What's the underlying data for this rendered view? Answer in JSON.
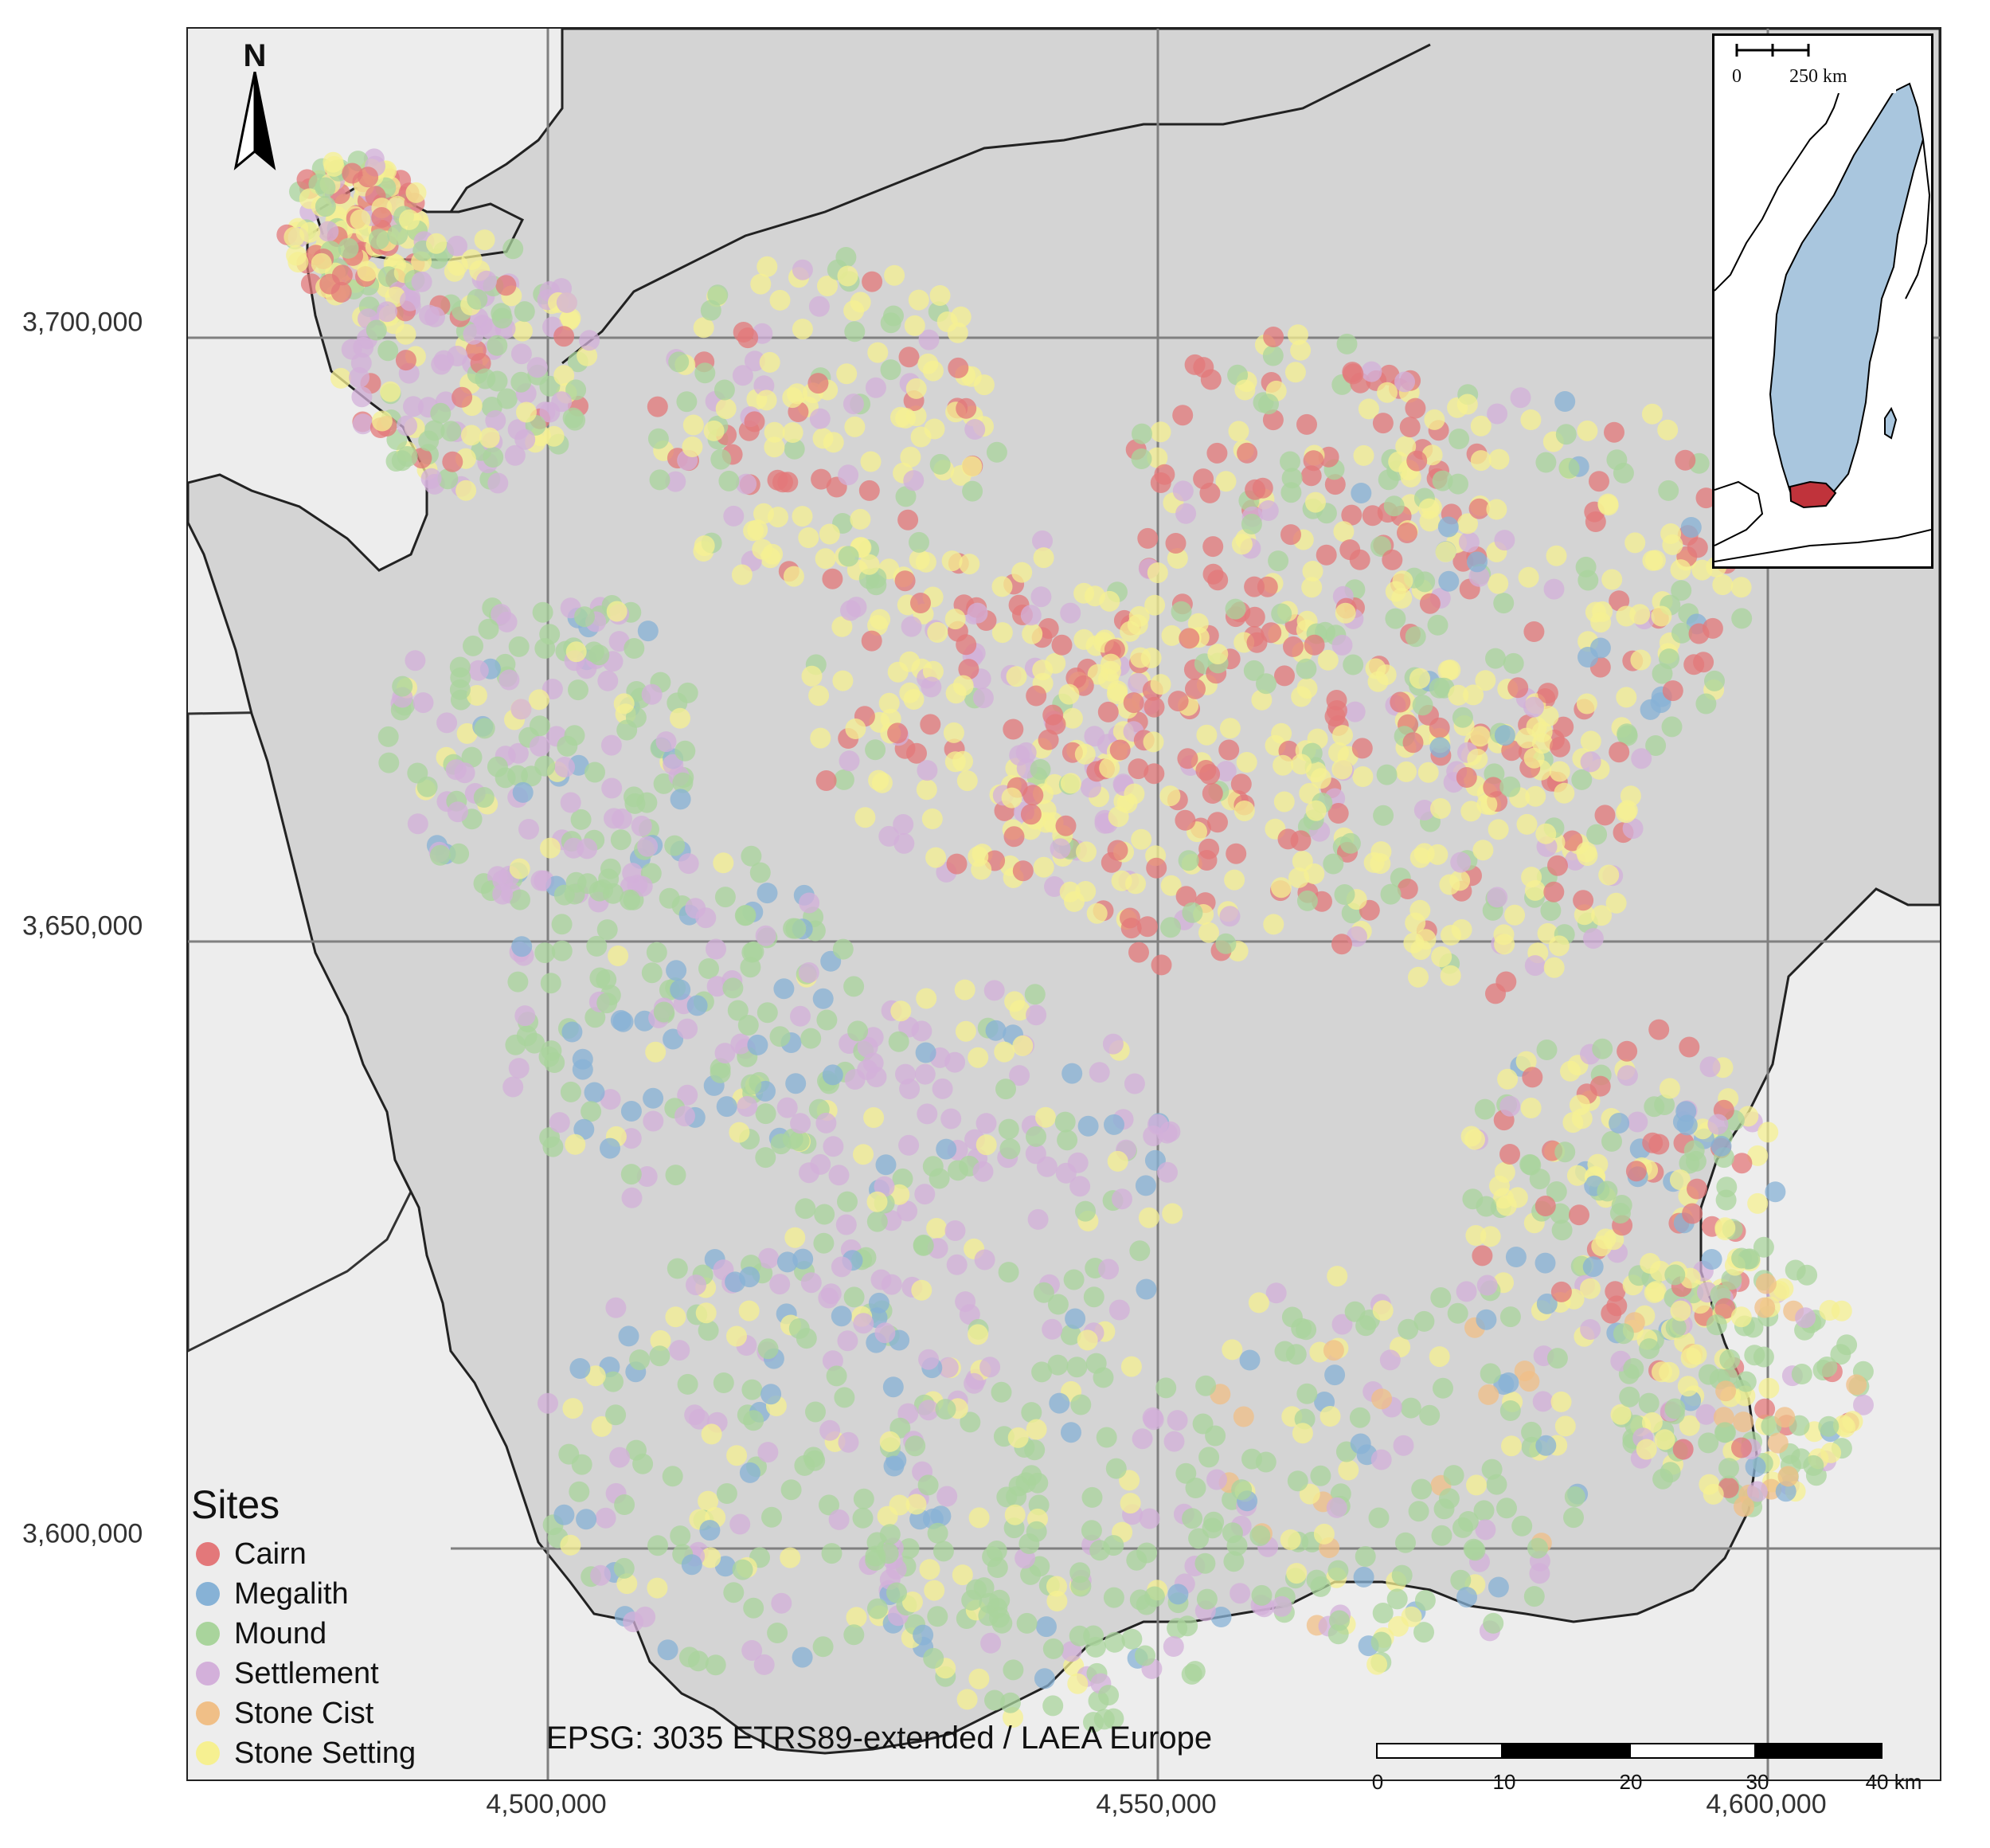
{
  "map": {
    "crs_label": "EPSG: 3035 ETRS89-extended / LAEA Europe",
    "north_label": "N",
    "y_axis_ticks": [
      "3,700,000",
      "3,650,000",
      "3,600,000"
    ],
    "x_axis_ticks": [
      "4,500,000",
      "4,550,000",
      "4,600,000"
    ],
    "scale_bar": {
      "labels": [
        "0",
        "10",
        "20",
        "30",
        "40 km"
      ]
    },
    "inset": {
      "scale_labels": [
        "0",
        "250 km"
      ]
    },
    "colors": {
      "land": "#d4d4d4",
      "outside_land": "#ededed",
      "sea": "#ffffff",
      "inset_sweden": "#a9c6de",
      "inset_highlight": "#c0333b"
    }
  },
  "legend": {
    "title": "Sites",
    "items": [
      {
        "label": "Cairn",
        "color": "#e3787a"
      },
      {
        "label": "Megalith",
        "color": "#87b2d6"
      },
      {
        "label": "Mound",
        "color": "#a9d49c"
      },
      {
        "label": "Settlement",
        "color": "#d3b0da"
      },
      {
        "label": "Stone Cist",
        "color": "#f0bf87"
      },
      {
        "label": "Stone Setting",
        "color": "#f6f091"
      }
    ]
  }
}
